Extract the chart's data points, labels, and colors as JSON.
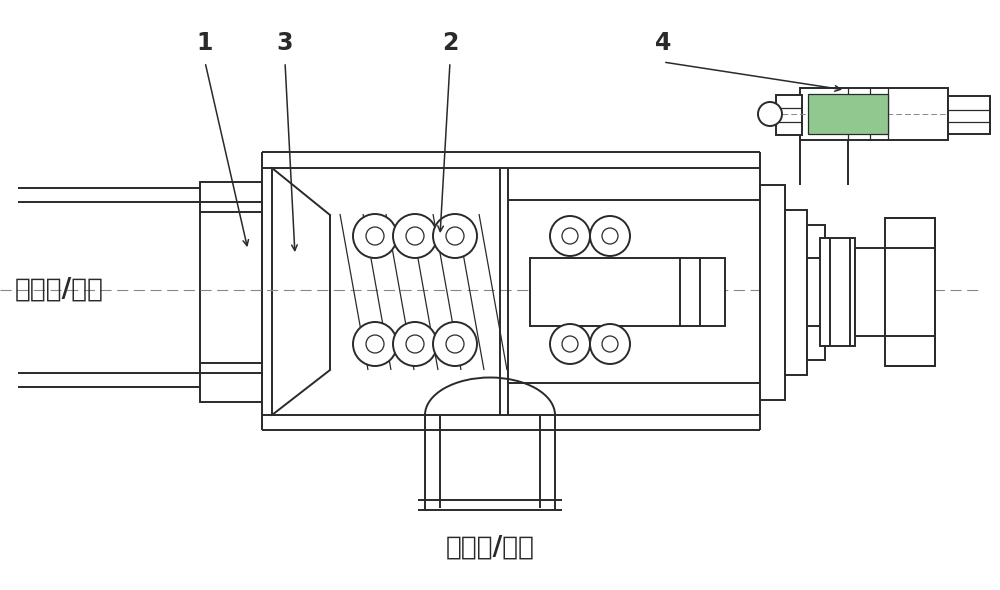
{
  "bg_color": "#ffffff",
  "line_color": "#2a2a2a",
  "green_color": "#90c890",
  "dash_color": "#888888",
  "fig_width": 10.0,
  "fig_height": 5.9,
  "dpi": 100,
  "label_1": "1",
  "label_2": "2",
  "label_3": "3",
  "label_4": "4",
  "text_left": "高压腔/进口",
  "text_bottom": "低压腔/出口",
  "font_size_label": 17,
  "font_size_text": 19
}
